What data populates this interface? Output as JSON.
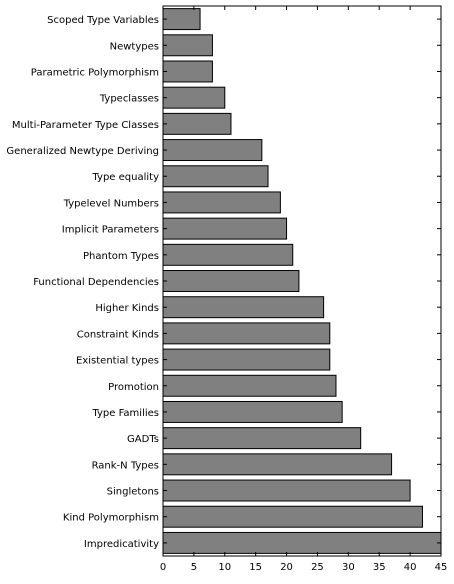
{
  "chart_data": {
    "type": "bar",
    "orientation": "horizontal",
    "categories": [
      "Scoped Type Variables",
      "Newtypes",
      "Parametric Polymorphism",
      "Typeclasses",
      "Multi-Parameter Type Classes",
      "Generalized Newtype Deriving",
      "Type equality",
      "Typelevel Numbers",
      "Implicit Parameters",
      "Phantom Types",
      "Functional Dependencies",
      "Higher Kinds",
      "Constraint Kinds",
      "Existential types",
      "Promotion",
      "Type Families",
      "GADTs",
      "Rank-N Types",
      "Singletons",
      "Kind Polymorphism",
      "Impredicativity"
    ],
    "values": [
      6,
      8,
      8,
      10,
      11,
      16,
      17,
      19,
      20,
      21,
      22,
      26,
      27,
      27,
      28,
      29,
      32,
      37,
      40,
      42,
      45
    ],
    "title": "",
    "xlabel": "",
    "ylabel": "",
    "xlim": [
      0,
      45
    ],
    "xticks": [
      "0",
      "5",
      "10",
      "15",
      "20",
      "25",
      "30",
      "35",
      "40",
      "45"
    ],
    "grid": false,
    "bar_color": "#808080",
    "edge_color": "#000000"
  }
}
